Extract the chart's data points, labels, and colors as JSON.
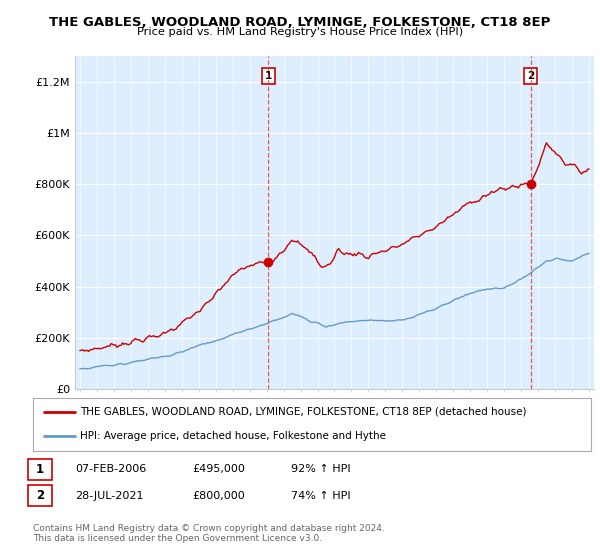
{
  "title": "THE GABLES, WOODLAND ROAD, LYMINGE, FOLKESTONE, CT18 8EP",
  "subtitle": "Price paid vs. HM Land Registry's House Price Index (HPI)",
  "x_start_year": 1995,
  "x_end_year": 2025,
  "ylim": [
    0,
    1300000
  ],
  "yticks": [
    0,
    200000,
    400000,
    600000,
    800000,
    1000000,
    1200000
  ],
  "ytick_labels": [
    "£0",
    "£200K",
    "£400K",
    "£600K",
    "£800K",
    "£1M",
    "£1.2M"
  ],
  "sale1_date_num": 2006.1,
  "sale1_price": 495000,
  "sale2_date_num": 2021.57,
  "sale2_price": 800000,
  "line1_color": "#cc0000",
  "line2_color": "#6699cc",
  "vline_color": "#dd3333",
  "bg_fill_color": "#ddeeff",
  "legend_label1": "THE GABLES, WOODLAND ROAD, LYMINGE, FOLKESTONE, CT18 8EP (detached house)",
  "legend_label2": "HPI: Average price, detached house, Folkestone and Hythe",
  "table_row1": [
    "1",
    "07-FEB-2006",
    "£495,000",
    "92% ↑ HPI"
  ],
  "table_row2": [
    "2",
    "28-JUL-2021",
    "£800,000",
    "74% ↑ HPI"
  ],
  "footnote": "Contains HM Land Registry data © Crown copyright and database right 2024.\nThis data is licensed under the Open Government Licence v3.0.",
  "background_color": "#ffffff"
}
